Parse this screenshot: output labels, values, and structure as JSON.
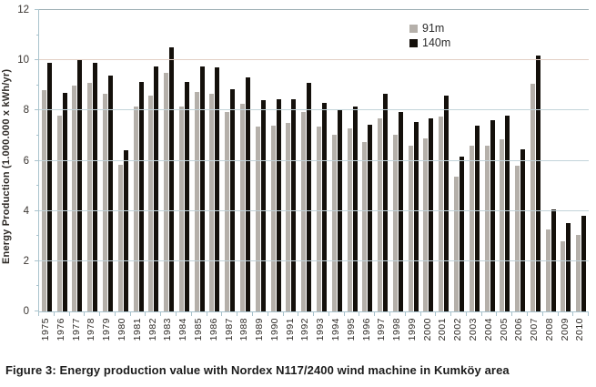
{
  "figure": {
    "caption": "Figure 3: Energy production value with Nordex N117/2400 wind machine in Kumköy area"
  },
  "chart_data": {
    "type": "bar",
    "title": "",
    "xlabel": "",
    "ylabel": "Energy Production (1.000.000 x kWh/yr)",
    "ylim": [
      0,
      12
    ],
    "yticks": [
      0,
      2,
      4,
      6,
      8,
      10,
      12
    ],
    "grid": true,
    "legend_position": "top-center-inside",
    "categories": [
      "1975",
      "1976",
      "1977",
      "1978",
      "1979",
      "1980",
      "1981",
      "1982",
      "1983",
      "1984",
      "1985",
      "1986",
      "1987",
      "1988",
      "1989",
      "1990",
      "1991",
      "1992",
      "1993",
      "1994",
      "1995",
      "1996",
      "1997",
      "1998",
      "1999",
      "2000",
      "2001",
      "2002",
      "2003",
      "2004",
      "2005",
      "2006",
      "2007",
      "2008",
      "2009",
      "2010"
    ],
    "series": [
      {
        "name": "91m",
        "color": "#b5b0aa",
        "values": [
          8.8,
          7.8,
          9.0,
          9.1,
          8.65,
          5.85,
          8.15,
          8.6,
          9.5,
          8.15,
          8.75,
          8.65,
          7.95,
          8.25,
          7.35,
          7.4,
          7.5,
          7.95,
          7.35,
          7.05,
          7.3,
          6.75,
          7.7,
          7.05,
          6.6,
          6.9,
          7.75,
          5.35,
          6.6,
          6.6,
          6.85,
          5.8,
          9.05,
          3.25,
          2.8,
          3.05
        ]
      },
      {
        "name": "140m",
        "color": "#14100b",
        "values": [
          9.9,
          8.7,
          10.0,
          9.9,
          9.4,
          6.4,
          9.15,
          9.75,
          10.5,
          9.15,
          9.75,
          9.7,
          8.85,
          9.3,
          8.4,
          8.45,
          8.45,
          9.1,
          8.3,
          8.05,
          8.15,
          7.45,
          8.65,
          7.95,
          7.55,
          7.7,
          8.6,
          6.15,
          7.4,
          7.6,
          7.8,
          6.45,
          10.2,
          4.05,
          3.5,
          3.8
        ]
      }
    ]
  },
  "colors": {
    "grid": "#c3d4da",
    "grid_top": "#9fb0b5",
    "grid_warm": "#e2cfc5",
    "axis": "#a9c3cd"
  }
}
